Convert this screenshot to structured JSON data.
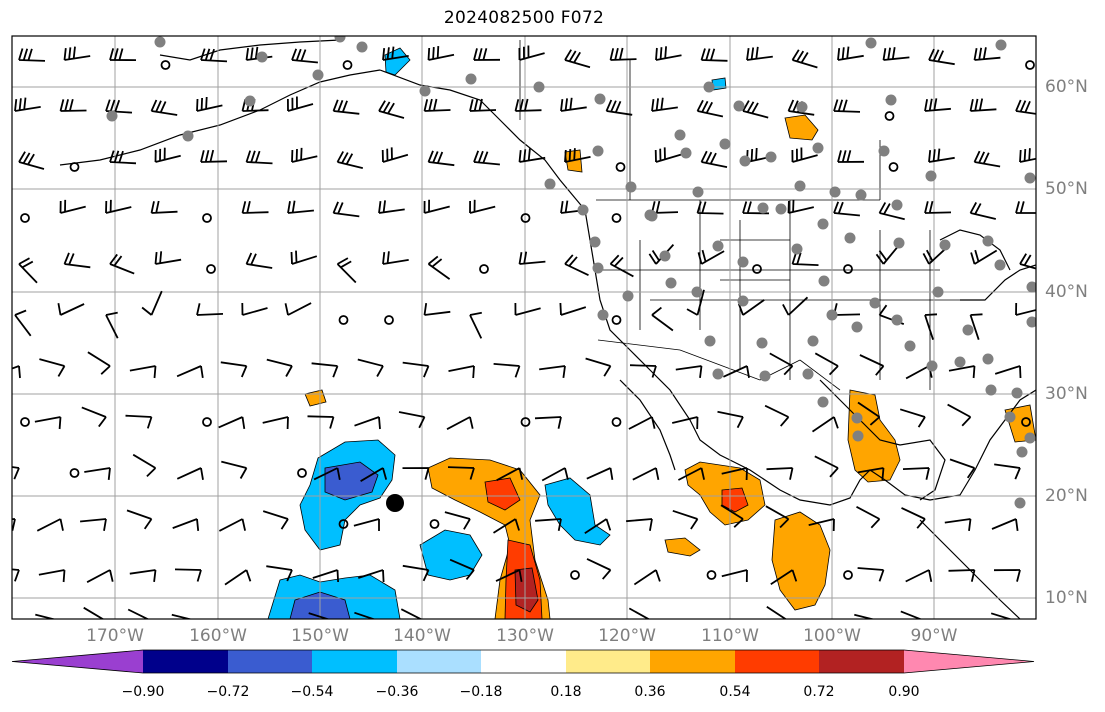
{
  "title": "2024082500 F072",
  "map": {
    "projection": "PlateCarree",
    "extent_lon": [
      -179,
      -79
    ],
    "extent_lat": [
      7,
      65
    ],
    "gridlines": true,
    "lon_labels": [
      "170°W",
      "160°W",
      "150°W",
      "140°W",
      "130°W",
      "120°W",
      "110°W",
      "100°W",
      "90°W"
    ],
    "lat_labels": [
      "60°N",
      "50°N",
      "40°N",
      "30°N",
      "20°N",
      "10°N"
    ],
    "marker": {
      "description": "large black dot",
      "lon": -142.5,
      "lat": 19.2
    }
  },
  "colorbar": {
    "colors": [
      "#9a3fd0",
      "#00008b",
      "#3a5cd0",
      "#00bfff",
      "#aadfff",
      "#ffffff",
      "#ffeb8a",
      "#ffa500",
      "#ff3c00",
      "#b22222",
      "#ff88b0"
    ],
    "tick_labels": [
      "−0.90",
      "−0.72",
      "−0.54",
      "−0.36",
      "−0.18",
      "0.18",
      "0.36",
      "0.54",
      "0.72",
      "0.90"
    ],
    "extend": "both"
  }
}
